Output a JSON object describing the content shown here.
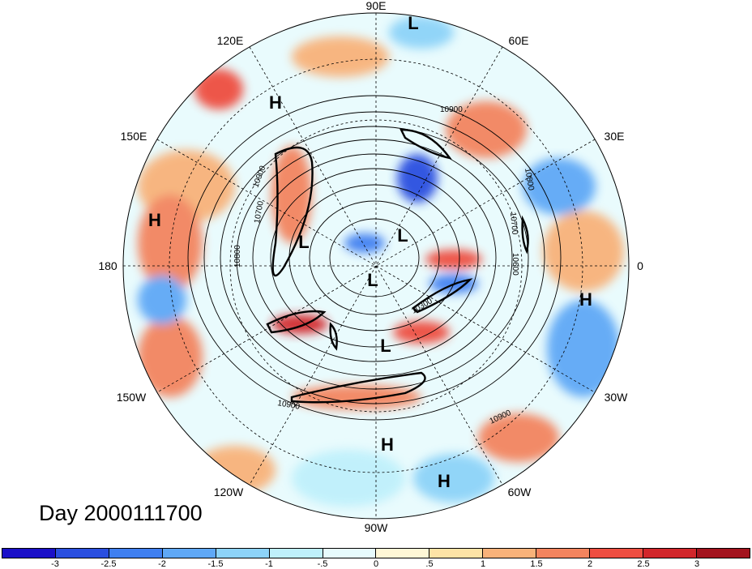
{
  "title_text": "Day 2000111700",
  "longitude_labels": [
    "90E",
    "60E",
    "30E",
    "0",
    "30W",
    "60W",
    "90W",
    "120W",
    "150W",
    "180",
    "150E",
    "120E"
  ],
  "pressure_centers": [
    {
      "type": "L"
    },
    {
      "type": "L"
    },
    {
      "type": "L"
    },
    {
      "type": "L"
    },
    {
      "type": "L"
    },
    {
      "type": "H"
    },
    {
      "type": "H"
    },
    {
      "type": "H"
    },
    {
      "type": "H"
    },
    {
      "type": "H"
    }
  ],
  "contour_labels": [
    "10900",
    "10900",
    "10700",
    "10800",
    "10800",
    "10700",
    "10600",
    "10300",
    "10900",
    "10900"
  ],
  "colorbar": {
    "colors": [
      "#1a10c8",
      "#2a4fe0",
      "#3f7ff0",
      "#5fa8f6",
      "#8dd3f8",
      "#bff0fb",
      "#e7fbfd",
      "#fff7d6",
      "#fde3a6",
      "#f8b27a",
      "#f3845e",
      "#ee4e41",
      "#d2262b",
      "#a3131e"
    ],
    "tick_labels": [
      "-3",
      "-2.5",
      "-2",
      "-1.5",
      "-1",
      "-.5",
      "0",
      ".5",
      "1",
      "1.5",
      "2",
      "2.5",
      "3"
    ]
  },
  "legend_colors": {
    "blue": "#3f7ff0",
    "red": "#ee4e41"
  }
}
